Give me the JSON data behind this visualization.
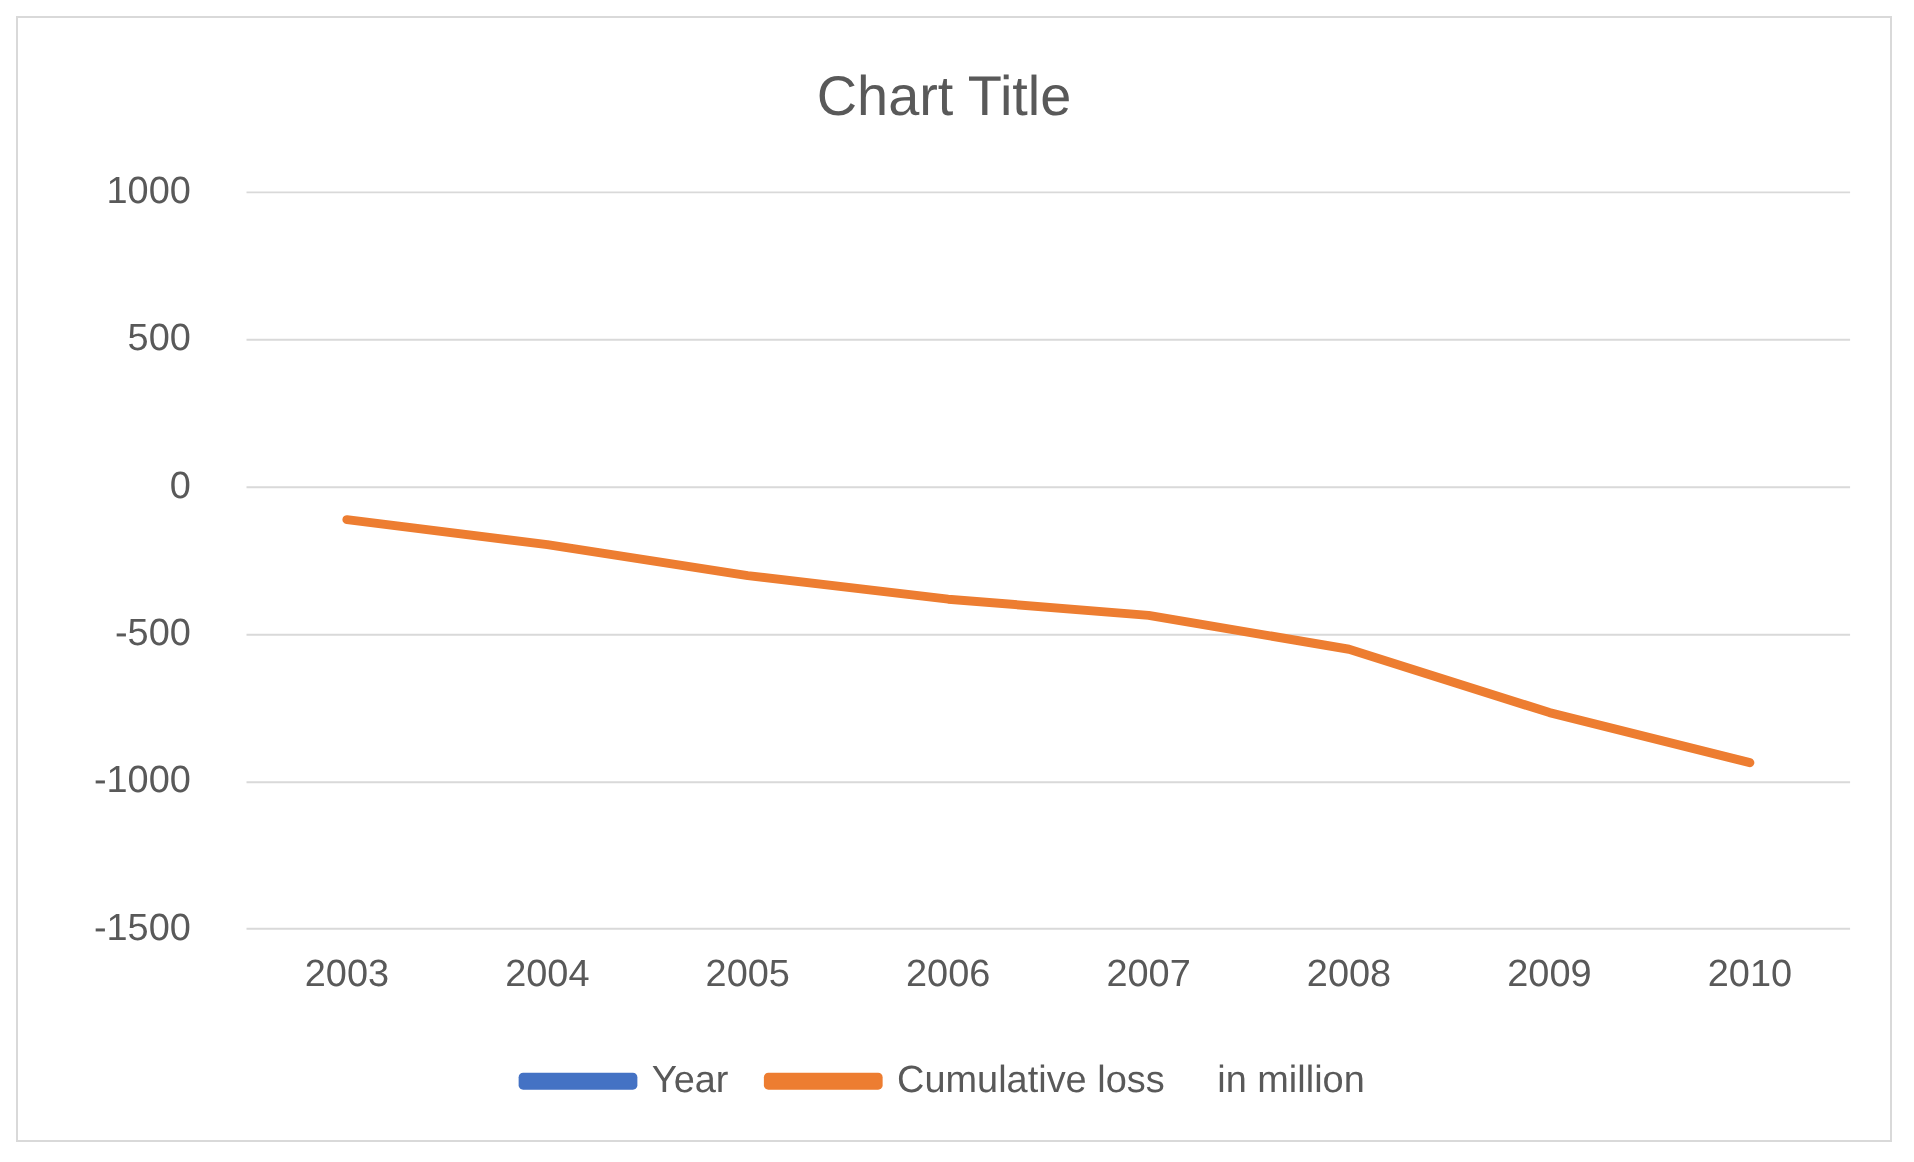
{
  "chart_data": {
    "type": "line",
    "title": "Chart Title",
    "categories": [
      "2003",
      "2004",
      "2005",
      "2006",
      "2007",
      "2008",
      "2009",
      "2010"
    ],
    "series": [
      {
        "name": "Year",
        "color": "#4472c4",
        "values": [
          null,
          null,
          null,
          null,
          null,
          null,
          null,
          null
        ]
      },
      {
        "name": "Cumulative loss     in million",
        "color": "#ed7d31",
        "values": [
          -110,
          -195,
          -300,
          -380,
          -435,
          -550,
          -765,
          -935
        ]
      }
    ],
    "ylim": [
      -1500,
      1000
    ],
    "yticks": [
      -1500,
      -1000,
      -500,
      0,
      500,
      1000
    ],
    "grid": "y",
    "legend": "bottom",
    "marker": "none",
    "line_style": "solid"
  }
}
